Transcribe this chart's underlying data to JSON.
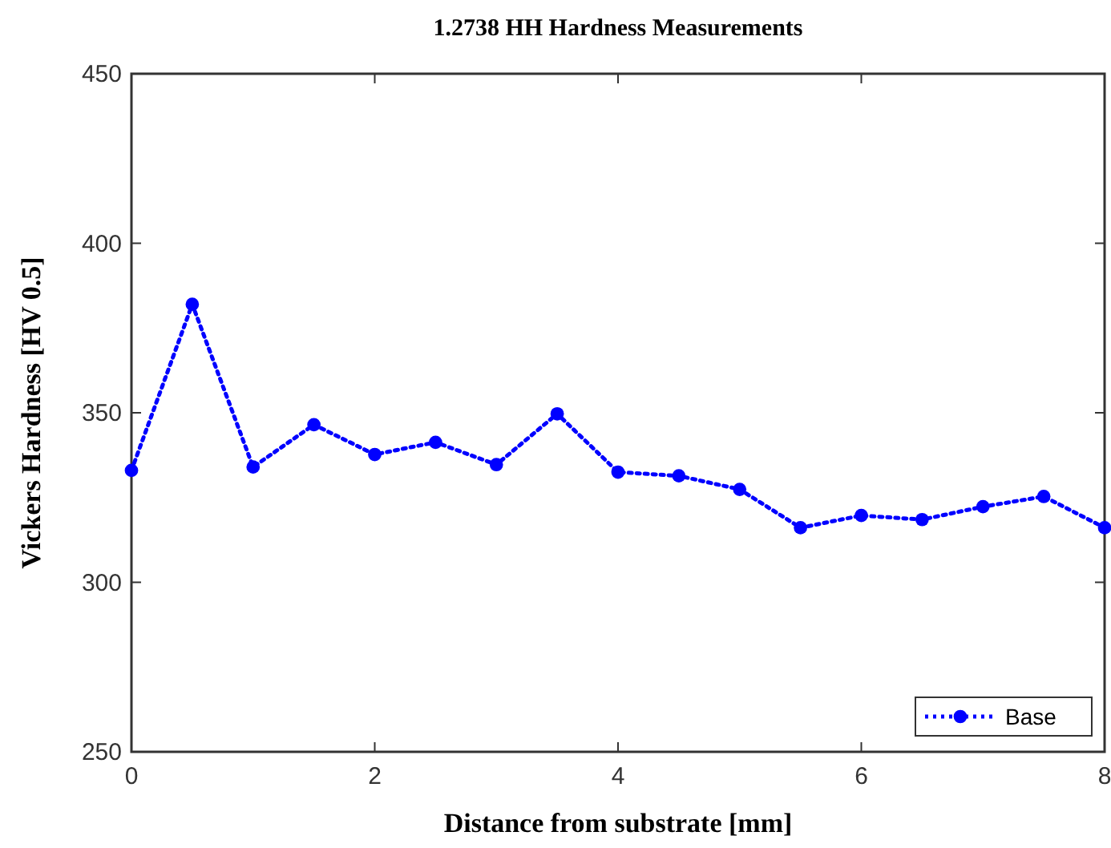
{
  "chart_data": {
    "type": "line",
    "title": "1.2738 HH Hardness Measurements",
    "xlabel": "Distance from substrate [mm]",
    "ylabel": "Vickers Hardness [HV 0.5]",
    "x": [
      0,
      0.5,
      1,
      1.5,
      2,
      2.5,
      3,
      3.5,
      4,
      4.5,
      5,
      5.5,
      6,
      6.5,
      7,
      7.5,
      8
    ],
    "series": [
      {
        "name": "Base",
        "color": "#0000ff",
        "values": [
          333,
          382,
          334,
          346.5,
          337.7,
          341.3,
          334.7,
          349.7,
          332.5,
          331.4,
          327.4,
          316.1,
          319.7,
          318.5,
          322.3,
          325.3,
          316.1
        ]
      }
    ],
    "xlim": [
      0,
      8
    ],
    "xticks": [
      0,
      2,
      4,
      6,
      8
    ],
    "ylim": [
      250,
      450
    ],
    "yticks": [
      250,
      300,
      350,
      400,
      450
    ],
    "grid": false,
    "legend": "bottom right",
    "marker": "circle",
    "line_style": "dotted"
  }
}
